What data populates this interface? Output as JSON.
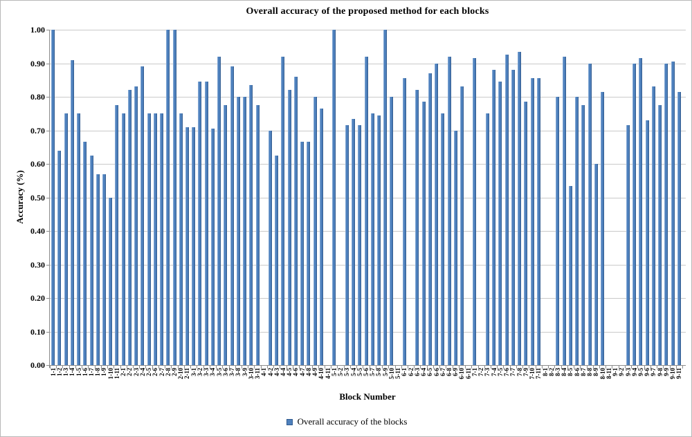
{
  "chart_data": {
    "type": "bar",
    "title": "Overall accuracy of the proposed method for each blocks",
    "xlabel": "Block Number",
    "ylabel": "Accuracy (%)",
    "legend": [
      "Overall accuracy of the blocks"
    ],
    "legend_position": "bottom-center",
    "grid": true,
    "ylim": [
      0.0,
      1.0
    ],
    "ytick_step": 0.1,
    "ytick_labels": [
      "0.00",
      "0.10",
      "0.20",
      "0.30",
      "0.40",
      "0.50",
      "0.60",
      "0.70",
      "0.80",
      "0.90",
      "1.00"
    ],
    "categories": [
      "1-1",
      "1-2",
      "1-3",
      "1-4",
      "1-5",
      "1-6",
      "1-7",
      "1-8",
      "1-9",
      "1-10",
      "1-11",
      "2-1",
      "2-2",
      "2-3",
      "2-4",
      "2-5",
      "2-6",
      "2-7",
      "2-8",
      "2-9",
      "2-10",
      "2-11",
      "3-1",
      "3-2",
      "3-3",
      "3-4",
      "3-5",
      "3-6",
      "3-7",
      "3-8",
      "3-9",
      "3-10",
      "3-11",
      "4-1",
      "4-2",
      "4-3",
      "4-4",
      "4-5",
      "4-6",
      "4-7",
      "4-8",
      "4-9",
      "4-10",
      "4-11",
      "5-1",
      "5-2",
      "5-3",
      "5-4",
      "5-5",
      "5-6",
      "5-7",
      "5-8",
      "5-9",
      "5-10",
      "5-11",
      "6-1",
      "6-2",
      "6-3",
      "6-4",
      "6-5",
      "6-6",
      "6-7",
      "6-8",
      "6-9",
      "6-10",
      "6-11",
      "7-1",
      "7-2",
      "7-3",
      "7-4",
      "7-5",
      "7-6",
      "7-7",
      "7-8",
      "7-9",
      "7-10",
      "7-11",
      "8-1",
      "8-2",
      "8-3",
      "8-4",
      "8-5",
      "8-6",
      "8-7",
      "8-8",
      "8-9",
      "8-10",
      "8-11",
      "9-1",
      "9-2",
      "9-3",
      "9-4",
      "9-5",
      "9-6",
      "9-7",
      "9-8",
      "9-9",
      "9-10",
      "9-11"
    ],
    "values": [
      1.0,
      0.64,
      0.75,
      0.91,
      0.75,
      0.665,
      0.625,
      0.57,
      0.57,
      0.5,
      0.775,
      0.75,
      0.82,
      0.83,
      0.89,
      0.75,
      0.75,
      0.75,
      1.0,
      1.0,
      0.75,
      0.71,
      0.71,
      0.845,
      0.845,
      0.705,
      0.92,
      0.775,
      0.89,
      0.8,
      0.8,
      0.835,
      0.775,
      null,
      0.7,
      0.625,
      0.92,
      0.82,
      0.86,
      0.665,
      0.665,
      0.8,
      0.765,
      null,
      1.0,
      null,
      0.715,
      0.735,
      0.715,
      0.92,
      0.75,
      0.745,
      1.0,
      0.8,
      null,
      0.855,
      null,
      0.82,
      0.785,
      0.87,
      0.9,
      0.75,
      0.92,
      0.7,
      0.83,
      null,
      0.915,
      null,
      0.75,
      0.88,
      0.845,
      0.925,
      0.88,
      0.935,
      0.785,
      0.855,
      0.855,
      null,
      null,
      0.8,
      0.92,
      0.535,
      0.8,
      0.775,
      0.9,
      0.6,
      0.815,
      null,
      null,
      null,
      0.715,
      0.9,
      0.915,
      0.73,
      0.83,
      0.775,
      0.9,
      0.905,
      0.815
    ],
    "colors": {
      "bar": "#4f81bd",
      "bar_border": "#2f5a8f",
      "gridline": "#c9c9c9",
      "axis": "#8c8c8c",
      "text": "#000000",
      "background": "#ffffff"
    }
  }
}
